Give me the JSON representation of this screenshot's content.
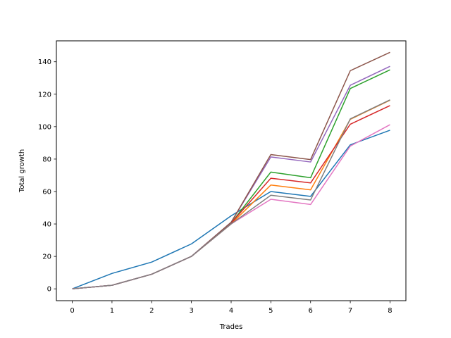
{
  "chart_data": {
    "type": "line",
    "title": "",
    "xlabel": "Trades",
    "ylabel": "Total growth",
    "x": [
      0,
      1,
      2,
      3,
      4,
      5,
      6,
      7,
      8
    ],
    "xlim": [
      -0.4,
      8.4
    ],
    "ylim": [
      -7.3,
      152.9
    ],
    "xticks": [
      0,
      1,
      2,
      3,
      4,
      5,
      6,
      7,
      8
    ],
    "yticks": [
      0,
      20,
      40,
      60,
      80,
      100,
      120,
      140
    ],
    "grid": false,
    "legend": "none",
    "series": [
      {
        "color": "#1f77b4",
        "values": [
          0,
          9.5,
          16.5,
          27.7,
          45.0,
          60.0,
          57.0,
          88.8,
          97.8
        ]
      },
      {
        "color": "#ff7f0e",
        "values": [
          0,
          2.2,
          9.0,
          20.0,
          40.0,
          64.0,
          61.0,
          104.5,
          116.3
        ]
      },
      {
        "color": "#2ca02c",
        "values": [
          0,
          2.2,
          9.0,
          20.0,
          40.5,
          72.0,
          68.5,
          123.5,
          135.0
        ]
      },
      {
        "color": "#d62728",
        "values": [
          0,
          2.2,
          9.0,
          20.0,
          40.5,
          68.2,
          65.3,
          101.5,
          113.0
        ]
      },
      {
        "color": "#9467bd",
        "values": [
          0,
          2.2,
          9.0,
          20.0,
          41.0,
          81.3,
          78.2,
          125.5,
          137.2
        ]
      },
      {
        "color": "#8c564b",
        "values": [
          0,
          2.2,
          9.0,
          20.0,
          41.0,
          82.8,
          79.7,
          134.5,
          145.8
        ]
      },
      {
        "color": "#e377c2",
        "values": [
          0,
          2.2,
          9.0,
          20.0,
          40.0,
          55.2,
          52.0,
          88.0,
          101.2
        ]
      },
      {
        "color": "#7f7f7f",
        "values": [
          0,
          2.2,
          9.0,
          20.0,
          40.0,
          57.7,
          54.8,
          104.8,
          116.5
        ]
      }
    ]
  }
}
